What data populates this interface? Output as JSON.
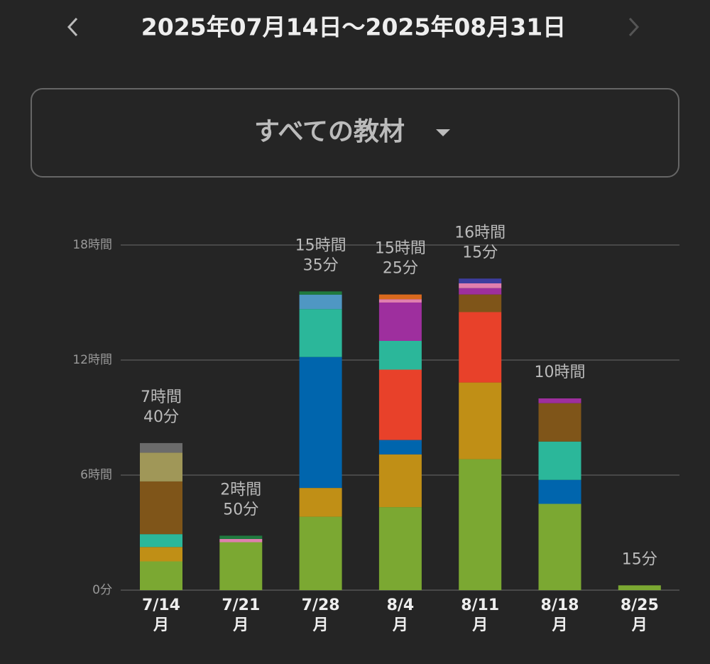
{
  "header": {
    "title": "2025年07月14日〜2025年08月31日"
  },
  "filter": {
    "label": "すべての教材"
  },
  "chart_data": {
    "type": "stacked-bar",
    "categories": [
      "7/14",
      "7/21",
      "7/28",
      "8/4",
      "8/11",
      "8/18",
      "8/25"
    ],
    "weekday_labels": [
      "月",
      "月",
      "月",
      "月",
      "月",
      "月",
      "月"
    ],
    "totals": [
      7.6667,
      2.8333,
      15.5833,
      15.4167,
      16.25,
      10,
      0.25
    ],
    "total_labels": [
      [
        "7時間",
        "40分"
      ],
      [
        "2時間",
        "50分"
      ],
      [
        "15時間",
        "35分"
      ],
      [
        "15時間",
        "25分"
      ],
      [
        "16時間",
        "15分"
      ],
      [
        "10時間"
      ],
      [
        "15分"
      ]
    ],
    "ylim": [
      0,
      18
    ],
    "yticks": [
      {
        "value": 0,
        "label": "0分"
      },
      {
        "value": 6,
        "label": "6時間"
      },
      {
        "value": 12,
        "label": "12時間"
      },
      {
        "value": 18,
        "label": "18時間"
      }
    ],
    "grid": true,
    "series": [
      {
        "color": "#7ba832",
        "values": [
          1.5,
          2.5,
          3.83,
          4.33,
          6.83,
          4.5,
          0.25
        ]
      },
      {
        "color": "#c08f16",
        "values": [
          0.75,
          null,
          1.5,
          2.75,
          4,
          null,
          null
        ]
      },
      {
        "color": "#0065ad",
        "values": [
          null,
          null,
          6.83,
          0.75,
          null,
          1.25,
          null
        ]
      },
      {
        "color": "#e8412a",
        "values": [
          null,
          null,
          null,
          3.67,
          3.67,
          null,
          null
        ]
      },
      {
        "color": "#2bb79a",
        "values": [
          0.67,
          null,
          2.5,
          1.5,
          null,
          2,
          null
        ]
      },
      {
        "color": "#7f5519",
        "values": [
          2.75,
          null,
          null,
          null,
          0.92,
          2,
          null
        ]
      },
      {
        "color": "#a09758",
        "values": [
          1.5,
          null,
          null,
          null,
          null,
          null,
          null
        ]
      },
      {
        "color": "#6b6b6b",
        "values": [
          0.5,
          null,
          null,
          null,
          null,
          null,
          null
        ]
      },
      {
        "color": "#4f97c3",
        "values": [
          null,
          null,
          0.75,
          null,
          null,
          null,
          null
        ]
      },
      {
        "color": "#9e2f9e",
        "values": [
          null,
          null,
          null,
          2,
          0.33,
          0.25,
          null
        ]
      },
      {
        "color": "#e07fae",
        "values": [
          null,
          0.17,
          null,
          0.17,
          0.25,
          null,
          null
        ]
      },
      {
        "color": "#d9691d",
        "values": [
          null,
          null,
          null,
          0.25,
          null,
          null,
          null
        ]
      },
      {
        "color": "#1f7a3e",
        "values": [
          null,
          0.17,
          0.17,
          null,
          null,
          null,
          null
        ]
      },
      {
        "color": "#3d3d9e",
        "values": [
          null,
          null,
          null,
          null,
          0.25,
          null,
          null
        ]
      }
    ]
  }
}
